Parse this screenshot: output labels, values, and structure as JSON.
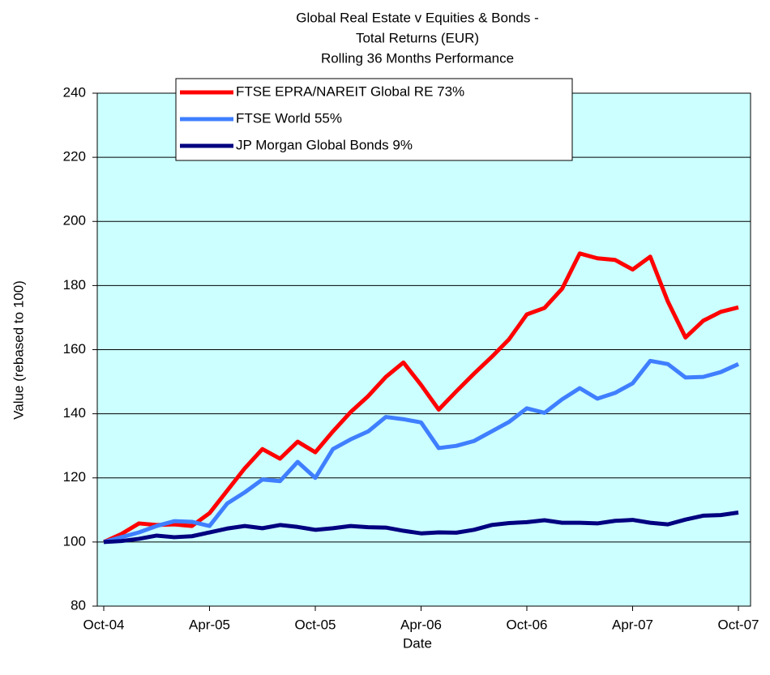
{
  "chart_data": {
    "type": "line",
    "title_lines": [
      "Global Real Estate v Equities & Bonds -",
      "Total Returns (EUR)",
      "Rolling 36 Months Performance"
    ],
    "x_label": "Date",
    "y_label": "Value (rebased to 100)",
    "categories": [
      "Oct-04",
      null,
      null,
      null,
      null,
      null,
      "Apr-05",
      null,
      null,
      null,
      null,
      null,
      "Oct-05",
      null,
      null,
      null,
      null,
      null,
      "Apr-06",
      null,
      null,
      null,
      null,
      null,
      "Oct-06",
      null,
      null,
      null,
      null,
      null,
      "Apr-07",
      null,
      null,
      null,
      null,
      null,
      "Oct-07"
    ],
    "series": [
      {
        "name": "FTSE EPRA/NAREIT Global RE 73%",
        "color": "#ff0000",
        "values": [
          100,
          102.5,
          105.8,
          105.3,
          105.5,
          105,
          109,
          116,
          123,
          129,
          126,
          131.3,
          128,
          134.5,
          140.5,
          145.5,
          151.5,
          156,
          149,
          141.3,
          147,
          152.5,
          157.7,
          163.3,
          171,
          173,
          179,
          190,
          188.5,
          188,
          185,
          189,
          175,
          163.8,
          169,
          171.8,
          173.2
        ]
      },
      {
        "name": "FTSE World 55%",
        "color": "#3f7fff",
        "values": [
          100,
          101.5,
          103,
          105,
          106.5,
          106.3,
          105,
          112,
          115.5,
          119.5,
          119,
          125,
          120,
          129,
          132,
          134.5,
          139,
          138.3,
          137.3,
          129.3,
          130,
          131.5,
          134.5,
          137.5,
          141.7,
          140.3,
          144.5,
          148,
          144.7,
          146.5,
          149.5,
          156.5,
          155.5,
          151.3,
          151.5,
          153,
          155.5
        ]
      },
      {
        "name": "JP Morgan Global Bonds 9%",
        "color": "#000080",
        "values": [
          100,
          100.3,
          101,
          102,
          101.5,
          101.8,
          103,
          104.2,
          105,
          104.3,
          105.3,
          104.7,
          103.8,
          104.3,
          105,
          104.6,
          104.5,
          103.5,
          102.7,
          103,
          102.9,
          103.8,
          105.3,
          105.9,
          106.2,
          106.8,
          106,
          106,
          105.8,
          106.6,
          106.9,
          106,
          105.5,
          107,
          108.2,
          108.4,
          109.2
        ]
      }
    ],
    "ylim": [
      80,
      240
    ],
    "yticks": [
      80,
      100,
      120,
      140,
      160,
      180,
      200,
      220,
      240
    ],
    "grid": true,
    "plot_background": "#ccffff"
  }
}
